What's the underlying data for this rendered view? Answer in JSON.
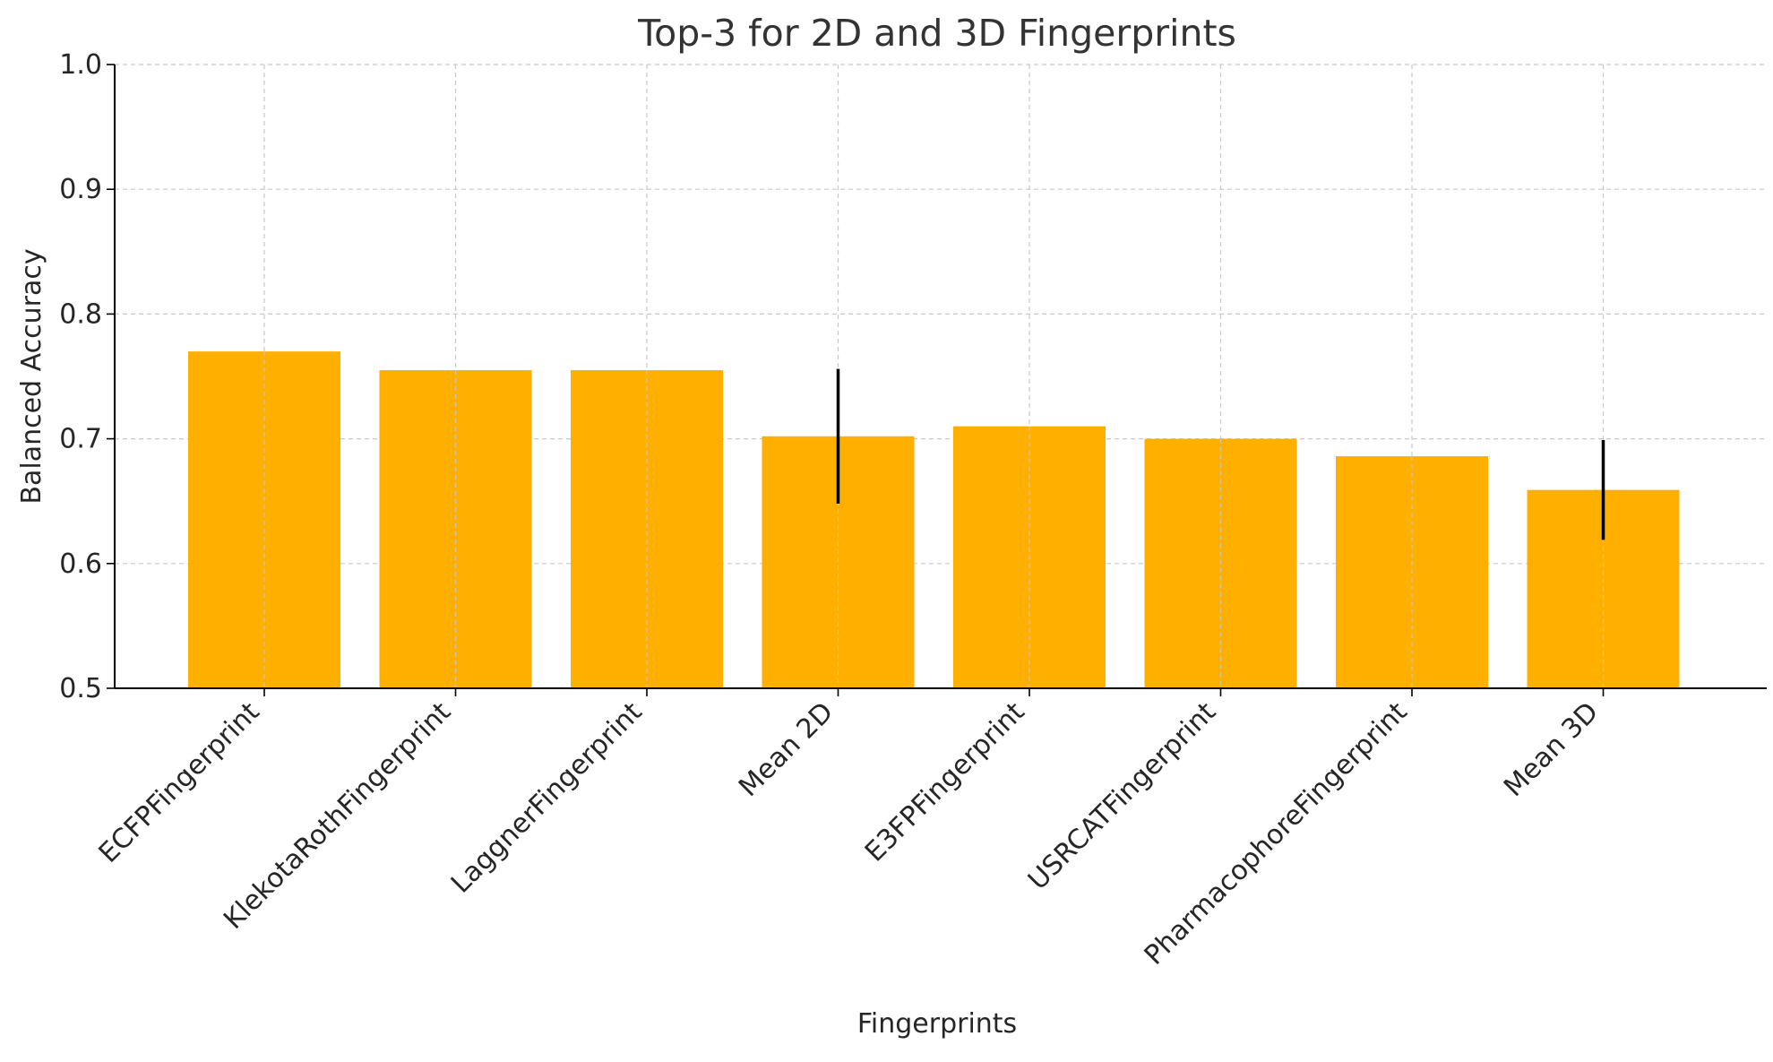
{
  "chart_data": {
    "type": "bar",
    "title": "Top-3 for 2D and 3D Fingerprints",
    "xlabel": "Fingerprints",
    "ylabel": "Balanced Accuracy",
    "ylim": [
      0.5,
      1.0
    ],
    "yticks": [
      "0.5",
      "0.6",
      "0.7",
      "0.8",
      "0.9",
      "1.0"
    ],
    "grid": true,
    "bar_color": "#FFAF00",
    "categories": [
      "ECFPFingerprint",
      "KlekotaRothFingerprint",
      "LaggnerFingerprint",
      "Mean 2D",
      "E3FPFingerprint",
      "USRCATFingerprint",
      "PharmacophoreFingerprint",
      "Mean 3D"
    ],
    "values": [
      0.77,
      0.755,
      0.755,
      0.702,
      0.71,
      0.7,
      0.686,
      0.659
    ],
    "error": [
      null,
      null,
      null,
      0.054,
      null,
      null,
      null,
      0.04
    ]
  }
}
